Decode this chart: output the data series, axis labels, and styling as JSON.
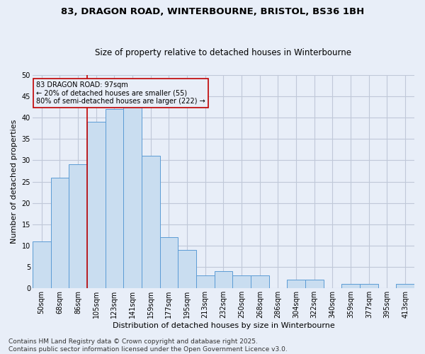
{
  "title": "83, DRAGON ROAD, WINTERBOURNE, BRISTOL, BS36 1BH",
  "subtitle": "Size of property relative to detached houses in Winterbourne",
  "xlabel": "Distribution of detached houses by size in Winterbourne",
  "ylabel": "Number of detached properties",
  "categories": [
    "50sqm",
    "68sqm",
    "86sqm",
    "105sqm",
    "123sqm",
    "141sqm",
    "159sqm",
    "177sqm",
    "195sqm",
    "213sqm",
    "232sqm",
    "250sqm",
    "268sqm",
    "286sqm",
    "304sqm",
    "322sqm",
    "340sqm",
    "359sqm",
    "377sqm",
    "395sqm",
    "413sqm"
  ],
  "values": [
    11,
    26,
    29,
    39,
    42,
    43,
    31,
    12,
    9,
    3,
    4,
    3,
    3,
    0,
    2,
    2,
    0,
    1,
    1,
    0,
    1
  ],
  "bar_color": "#c9ddf0",
  "bar_edge_color": "#5b9bd5",
  "grid_color": "#c0c8d8",
  "background_color": "#e8eef8",
  "vline_color": "#c00000",
  "annotation_text": "83 DRAGON ROAD: 97sqm\n← 20% of detached houses are smaller (55)\n80% of semi-detached houses are larger (222) →",
  "annotation_box_color": "#c00000",
  "ylim": [
    0,
    50
  ],
  "yticks": [
    0,
    5,
    10,
    15,
    20,
    25,
    30,
    35,
    40,
    45,
    50
  ],
  "footnote": "Contains HM Land Registry data © Crown copyright and database right 2025.\nContains public sector information licensed under the Open Government Licence v3.0.",
  "title_fontsize": 9.5,
  "subtitle_fontsize": 8.5,
  "label_fontsize": 8,
  "tick_fontsize": 7,
  "footnote_fontsize": 6.5
}
